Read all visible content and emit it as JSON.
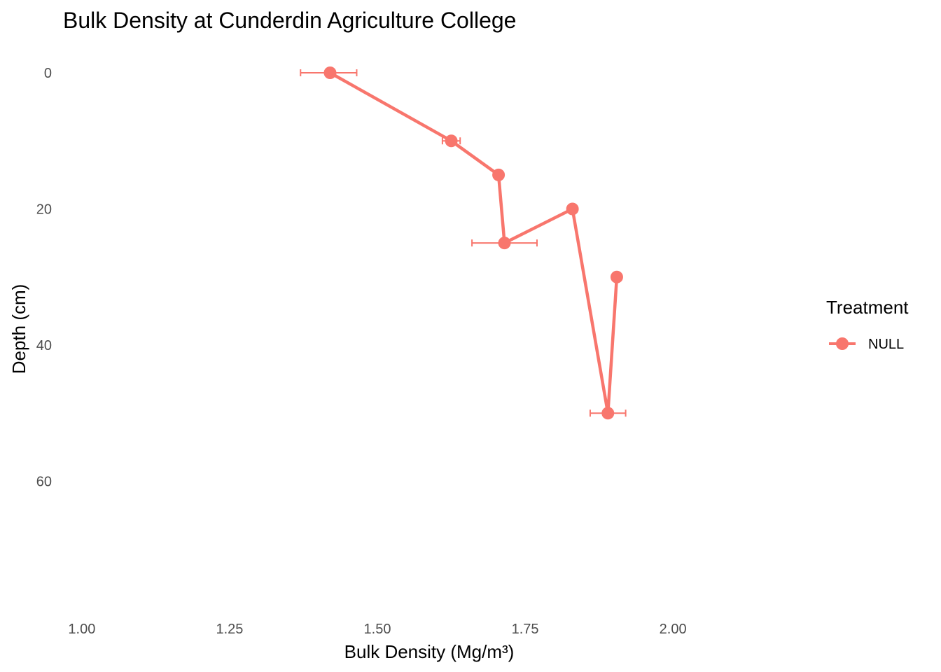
{
  "chart_data": {
    "type": "line",
    "title": "Bulk Density at Cunderdin Agriculture College",
    "xlabel": "Bulk Density (Mg/m³)",
    "ylabel": "Depth (cm)",
    "xlim": [
      0.98,
      2.2
    ],
    "ylim": [
      0,
      80
    ],
    "y_reversed": true,
    "x_ticks": [
      1.0,
      1.25,
      1.5,
      1.75,
      2.0
    ],
    "x_tick_labels": [
      "1.00",
      "1.25",
      "1.50",
      "1.75",
      "2.00"
    ],
    "y_ticks": [
      0,
      20,
      40,
      60
    ],
    "y_tick_labels": [
      "0",
      "20",
      "40",
      "60"
    ],
    "grid": false,
    "legend": {
      "title": "Treatment",
      "position": "right"
    },
    "series": [
      {
        "name": "NULL",
        "color": "#F8766D",
        "points": [
          {
            "x": 1.42,
            "y": 0,
            "xerr": [
              1.37,
              1.465
            ]
          },
          {
            "x": 1.625,
            "y": 10,
            "xerr": [
              1.61,
              1.64
            ]
          },
          {
            "x": 1.705,
            "y": 15
          },
          {
            "x": 1.715,
            "y": 25,
            "xerr": [
              1.66,
              1.77
            ]
          },
          {
            "x": 1.83,
            "y": 20
          },
          {
            "x": 1.89,
            "y": 50,
            "xerr": [
              1.86,
              1.92
            ]
          },
          {
            "x": 1.905,
            "y": 30
          }
        ]
      }
    ]
  }
}
